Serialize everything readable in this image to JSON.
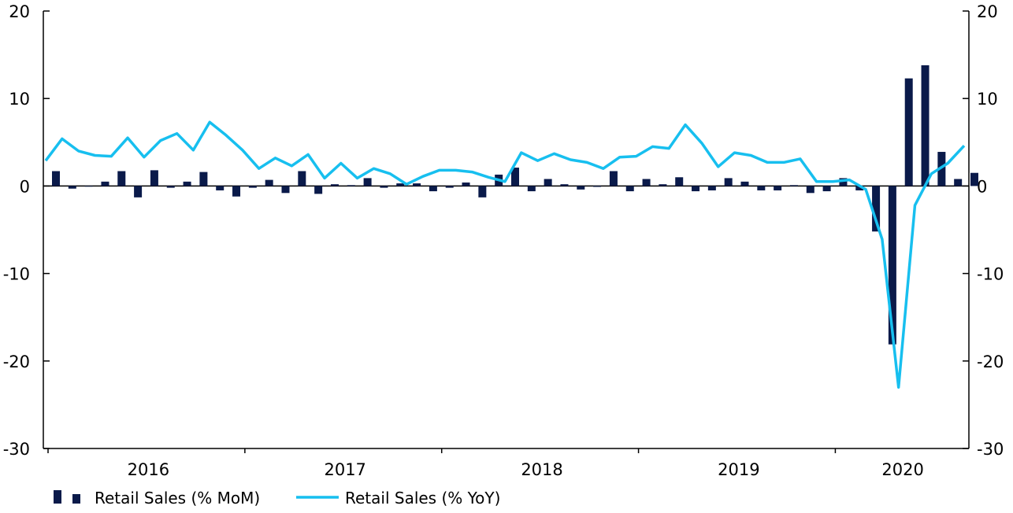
{
  "chart_data": {
    "type": "bar+line",
    "x_start": "2015-12",
    "y_range": [
      -30,
      20
    ],
    "y_ticks": [
      20,
      10,
      0,
      -10,
      -20,
      -30
    ],
    "year_labels": [
      "2016",
      "2017",
      "2018",
      "2019",
      "2020"
    ],
    "grid": false,
    "legend_position": "bottom",
    "series": [
      {
        "name": "Retail Sales (% MoM)",
        "kind": "bar",
        "axis": "left",
        "color": "#0a1a4a",
        "values": [
          1.7,
          -0.3,
          0.0,
          0.5,
          1.7,
          -1.3,
          1.8,
          -0.2,
          0.5,
          1.6,
          -0.5,
          -1.2,
          -0.2,
          0.7,
          -0.8,
          1.7,
          -0.9,
          0.2,
          0.1,
          0.9,
          -0.2,
          0.3,
          0.3,
          -0.6,
          -0.2,
          0.4,
          -1.3,
          1.3,
          2.1,
          -0.6,
          0.8,
          0.2,
          -0.4,
          -0.1,
          1.7,
          -0.6,
          0.8,
          0.2,
          1.0,
          -0.6,
          -0.5,
          0.9,
          0.5,
          -0.5,
          -0.5,
          0.1,
          -0.8,
          -0.6,
          0.9,
          -0.5,
          -5.2,
          -18.1,
          12.3,
          13.8,
          3.9,
          0.8,
          1.5
        ]
      },
      {
        "name": "Retail Sales (% YoY)",
        "kind": "line",
        "axis": "right",
        "color": "#17bfef",
        "values": [
          2.9,
          5.4,
          4.0,
          3.5,
          3.4,
          5.5,
          3.3,
          5.2,
          6.0,
          4.1,
          7.3,
          5.8,
          4.1,
          2.0,
          3.2,
          2.3,
          3.6,
          0.9,
          2.6,
          0.9,
          2.0,
          1.4,
          0.2,
          1.1,
          1.8,
          1.8,
          1.6,
          1.0,
          0.5,
          3.8,
          2.9,
          3.7,
          3.0,
          2.7,
          2.0,
          3.3,
          3.4,
          4.5,
          4.3,
          7.0,
          4.9,
          2.2,
          3.8,
          3.5,
          2.7,
          2.7,
          3.1,
          0.5,
          0.5,
          0.7,
          -0.4,
          -6.1,
          -23.0,
          -2.2,
          1.4,
          2.6,
          4.6
        ]
      }
    ]
  }
}
